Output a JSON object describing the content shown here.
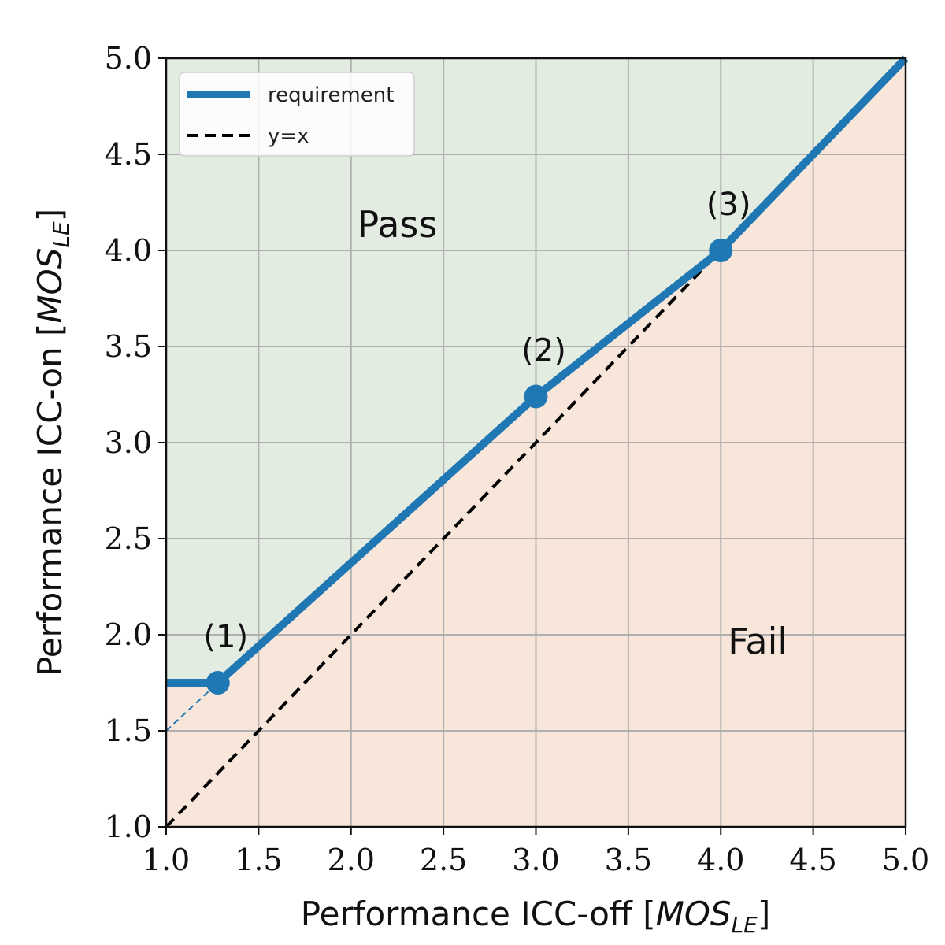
{
  "chart_data": {
    "type": "line",
    "xlabel_parts": {
      "main": "Performance ICC-off [",
      "var": "MOS",
      "sub": "LE",
      "close": "]"
    },
    "ylabel_parts": {
      "main": "Performance ICC-on [",
      "var": "MOS",
      "sub": "LE",
      "close": "]"
    },
    "xlim": [
      1.0,
      5.0
    ],
    "ylim": [
      1.0,
      5.0
    ],
    "xticks": [
      "1.0",
      "1.5",
      "2.0",
      "2.5",
      "3.0",
      "3.5",
      "4.0",
      "4.5",
      "5.0"
    ],
    "yticks": [
      "1.0",
      "1.5",
      "2.0",
      "2.5",
      "3.0",
      "3.5",
      "4.0",
      "4.5",
      "5.0"
    ],
    "grid": true,
    "legend_position": "top-left",
    "colors": {
      "requirement": "#1f77b4",
      "identity": "#000000",
      "pass_region": "#e3ece1",
      "fail_region": "#f9e6da",
      "grid": "#b0b0b0"
    },
    "series": [
      {
        "name": "requirement",
        "style": "solid-thick",
        "x": [
          1.0,
          1.28,
          3.0,
          4.0,
          5.0
        ],
        "y": [
          1.75,
          1.75,
          3.24,
          4.0,
          5.0
        ]
      },
      {
        "name": "y=x",
        "style": "dashed",
        "x": [
          1.0,
          5.0
        ],
        "y": [
          1.0,
          5.0
        ]
      }
    ],
    "extension": {
      "style": "thin-dashed",
      "x": [
        1.0,
        1.28
      ],
      "y": [
        1.5,
        1.75
      ]
    },
    "markers": [
      {
        "label": "(1)",
        "x": 1.28,
        "y": 1.75
      },
      {
        "label": "(2)",
        "x": 3.0,
        "y": 3.24
      },
      {
        "label": "(3)",
        "x": 4.0,
        "y": 4.0
      }
    ],
    "regions": [
      {
        "label": "Pass",
        "x": 2.25,
        "y": 4.07
      },
      {
        "label": "Fail",
        "x": 4.2,
        "y": 1.9
      }
    ]
  }
}
